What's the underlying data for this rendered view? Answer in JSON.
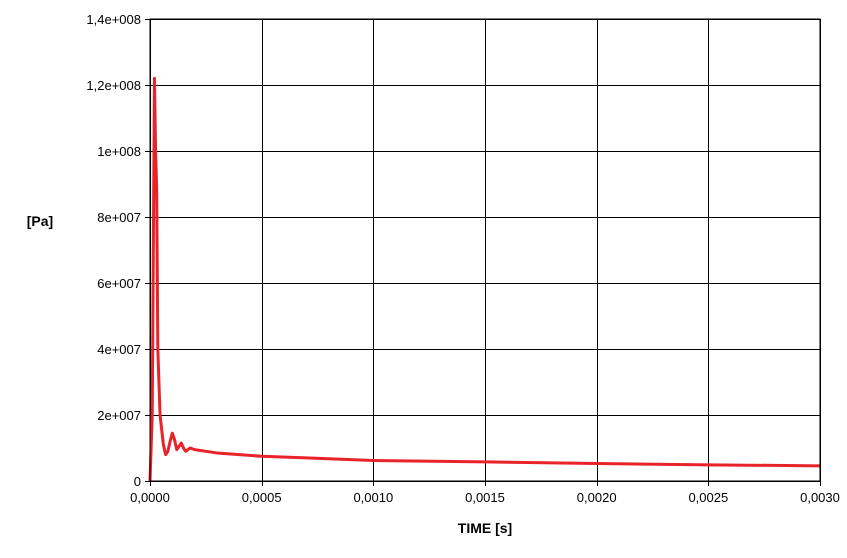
{
  "chart_data": {
    "type": "line",
    "title": "",
    "xlabel": "TIME [s]",
    "ylabel": "[Pa]",
    "xlim": [
      0,
      0.003
    ],
    "ylim": [
      0,
      140000000
    ],
    "x_ticks": [
      0,
      0.0005,
      0.001,
      0.0015,
      0.002,
      0.0025,
      0.003
    ],
    "x_tick_labels": [
      "0,0000",
      "0,0005",
      "0,0010",
      "0,0015",
      "0,0020",
      "0,0025",
      "0,0030"
    ],
    "y_ticks": [
      0,
      20000000,
      40000000,
      60000000,
      80000000,
      100000000,
      120000000,
      140000000
    ],
    "y_tick_labels": [
      "0",
      "2e+007",
      "4e+007",
      "6e+007",
      "8e+007",
      "1e+008",
      "1,2e+008",
      "1,4e+008"
    ],
    "grid": true,
    "line_color": "#e8232a",
    "series": [
      {
        "x": [
          0,
          1e-05,
          2e-05,
          2.5e-05,
          3e-05,
          3.5e-05,
          4e-05,
          4.5e-05,
          5e-05,
          6e-05,
          7e-05,
          8e-05,
          9e-05,
          0.0001,
          0.00011,
          0.00012,
          0.00013,
          0.00014,
          0.00015,
          0.00016,
          0.00018,
          0.0002,
          0.00025,
          0.0003,
          0.0004,
          0.0005,
          0.0007,
          0.001,
          0.0015,
          0.002,
          0.0025,
          0.003
        ],
        "y": [
          0,
          20000000,
          122000000,
          100000000,
          88000000,
          40000000,
          30000000,
          20000000,
          17000000,
          11000000,
          8000000,
          9000000,
          12000000,
          14500000,
          12500000,
          9500000,
          10500000,
          11500000,
          10000000,
          9000000,
          10000000,
          9500000,
          9000000,
          8500000,
          8000000,
          7500000,
          7000000,
          6200000,
          5800000,
          5300000,
          4900000,
          4600000
        ]
      }
    ]
  }
}
